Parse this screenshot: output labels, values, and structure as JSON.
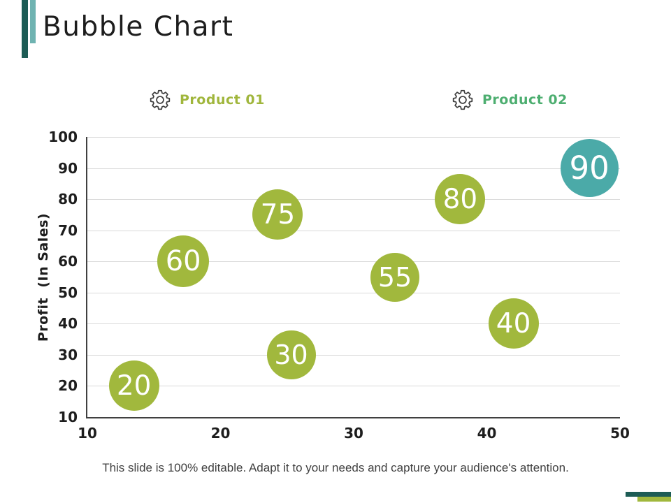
{
  "slide": {
    "title": "Bubble Chart",
    "footer": "This slide is 100% editable. Adapt it to your needs and capture your audience's attention."
  },
  "legend": {
    "items": [
      {
        "label": "Product 01",
        "color": "#a0b63c",
        "icon": "gear-icon"
      },
      {
        "label": "Product 02",
        "color": "#4dae70",
        "icon": "gear-icon"
      }
    ]
  },
  "chart_data": {
    "type": "scatter",
    "subtype": "bubble",
    "title": "",
    "xlabel": "",
    "ylabel": "Profit  (In Sales)",
    "xlim": [
      10,
      50
    ],
    "ylim": [
      10,
      100
    ],
    "x_ticks": [
      10,
      20,
      30,
      40,
      50
    ],
    "y_ticks": [
      10,
      20,
      30,
      40,
      50,
      60,
      70,
      80,
      90,
      100
    ],
    "grid": "horizontal-only",
    "legend_position": "top",
    "series": [
      {
        "name": "Product 01",
        "color": "#a1b83d",
        "points": [
          {
            "x": 13.5,
            "y": 20,
            "label": "20",
            "size": 72
          },
          {
            "x": 17.2,
            "y": 60,
            "label": "60",
            "size": 74
          },
          {
            "x": 24.3,
            "y": 75,
            "label": "75",
            "size": 72
          },
          {
            "x": 25.3,
            "y": 30,
            "label": "30",
            "size": 70
          },
          {
            "x": 33.1,
            "y": 55,
            "label": "55",
            "size": 70
          },
          {
            "x": 38.0,
            "y": 80,
            "label": "80",
            "size": 72
          },
          {
            "x": 42.0,
            "y": 40,
            "label": "40",
            "size": 72
          }
        ]
      },
      {
        "name": "Product 02",
        "color": "#4baaa8",
        "points": [
          {
            "x": 47.7,
            "y": 90,
            "label": "90",
            "size": 83
          }
        ]
      }
    ]
  },
  "colors": {
    "accent_dark_teal": "#1d5c55",
    "accent_light_teal": "#6fb3b1",
    "accent_green": "#a1b83d",
    "gridline": "#d9d9d9",
    "axis": "#404040",
    "text_dark": "#1d1d1d",
    "footer_text": "#3f3f3f"
  }
}
